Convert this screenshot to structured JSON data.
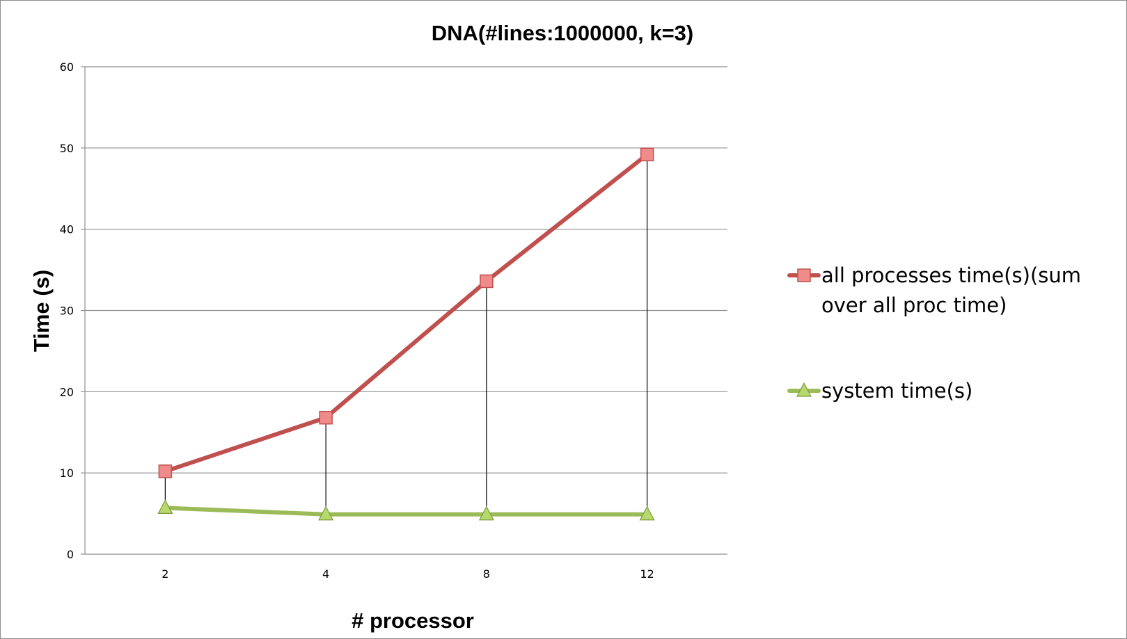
{
  "chart_data": {
    "type": "line",
    "title": "DNA(#lines:1000000, k=3)",
    "xlabel": "# processor",
    "ylabel": "Time (s)",
    "categories": [
      "2",
      "4",
      "8",
      "12"
    ],
    "ylim": [
      0,
      60
    ],
    "yticks": [
      0,
      10,
      20,
      30,
      40,
      50,
      60
    ],
    "grid": true,
    "legend_position": "right",
    "high_low_lines": true,
    "series": [
      {
        "name": "all processes time(s)(sum over all proc time)",
        "legend_lines": [
          "all processes time(s)(sum",
          "over all proc time)"
        ],
        "values": [
          10.2,
          16.8,
          33.6,
          49.2
        ],
        "color": "#c0504d",
        "marker": "square",
        "marker_fill": "#f08b8b"
      },
      {
        "name": "system time(s)",
        "legend_lines": [
          "system time(s)"
        ],
        "values": [
          5.7,
          4.9,
          4.9,
          4.9
        ],
        "color": "#9bbb59",
        "marker": "triangle",
        "marker_fill": "#b6d96b"
      }
    ]
  }
}
